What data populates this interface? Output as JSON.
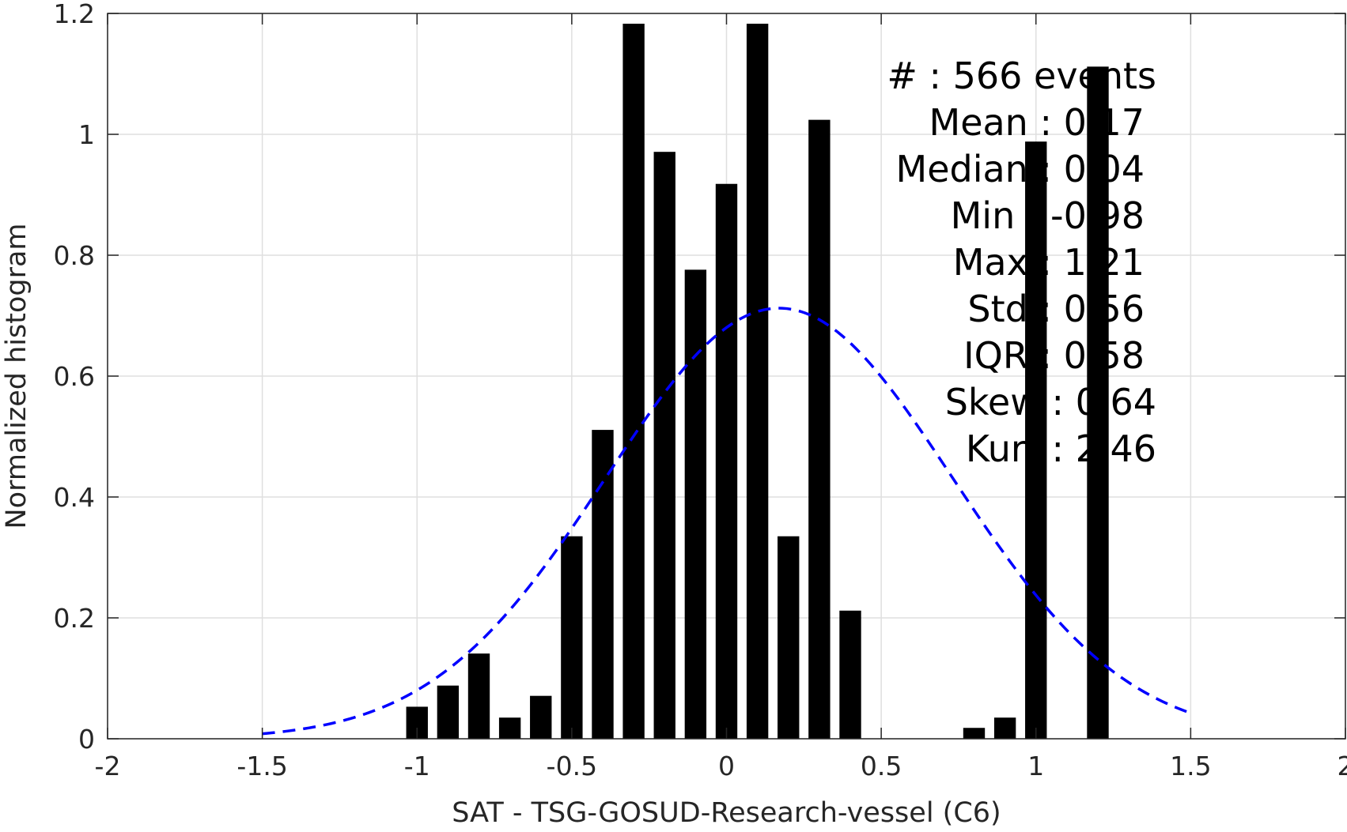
{
  "chart_data": {
    "type": "bar",
    "xlabel": "SAT - TSG-GOSUD-Research-vessel (C6)",
    "ylabel": "Normalized histogram",
    "xlim": [
      -2,
      2
    ],
    "ylim": [
      0,
      1.2
    ],
    "x_ticks": [
      -2,
      -1.5,
      -1,
      -0.5,
      0,
      0.5,
      1,
      1.5,
      2
    ],
    "x_tick_labels": [
      "-2",
      "-1.5",
      "-1",
      "-0.5",
      "0",
      "0.5",
      "1",
      "1.5",
      "2"
    ],
    "y_ticks": [
      0,
      0.2,
      0.4,
      0.6,
      0.8,
      1.0,
      1.2
    ],
    "y_tick_labels": [
      "0",
      "0.2",
      "0.4",
      "0.6",
      "0.8",
      "1",
      "1.2"
    ],
    "grid": true,
    "bar_color": "#000000",
    "bar_width": 0.07,
    "bars": [
      {
        "x": -1.0,
        "value": 0.053
      },
      {
        "x": -0.9,
        "value": 0.088
      },
      {
        "x": -0.8,
        "value": 0.141
      },
      {
        "x": -0.7,
        "value": 0.035
      },
      {
        "x": -0.6,
        "value": 0.071
      },
      {
        "x": -0.5,
        "value": 0.335
      },
      {
        "x": -0.4,
        "value": 0.511
      },
      {
        "x": -0.3,
        "value": 1.183
      },
      {
        "x": -0.2,
        "value": 0.971
      },
      {
        "x": -0.1,
        "value": 0.776
      },
      {
        "x": 0.0,
        "value": 0.918
      },
      {
        "x": 0.1,
        "value": 1.183
      },
      {
        "x": 0.2,
        "value": 0.335
      },
      {
        "x": 0.3,
        "value": 1.024
      },
      {
        "x": 0.4,
        "value": 0.212
      },
      {
        "x": 0.8,
        "value": 0.018
      },
      {
        "x": 0.9,
        "value": 0.035
      },
      {
        "x": 1.0,
        "value": 0.988
      },
      {
        "x": 1.2,
        "value": 1.112
      }
    ],
    "fit_curve": {
      "type": "normal-pdf",
      "mean": 0.17,
      "std": 0.56,
      "x_range": [
        -1.5,
        1.5
      ],
      "color": "#0000ff",
      "style": "dashed"
    },
    "stats_lines": [
      "#  : 566 events",
      "Mean : 0.17",
      "Median : 0.04",
      "Min : -0.98",
      "Max : 1.21",
      "Std : 0.56",
      "IQR : 0.58",
      "Skew : 0.64",
      "Kurt : 2.46"
    ]
  }
}
